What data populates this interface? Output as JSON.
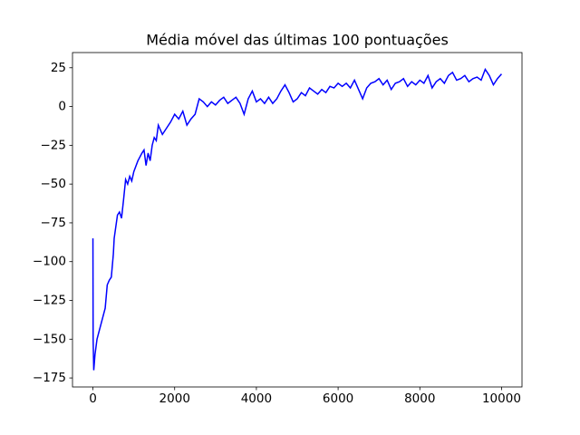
{
  "chart_data": {
    "type": "line",
    "title": "Média móvel das últimas 100 pontuações",
    "x": [
      0,
      5,
      20,
      50,
      100,
      150,
      200,
      300,
      350,
      400,
      450,
      500,
      520,
      600,
      650,
      700,
      750,
      800,
      850,
      900,
      950,
      1000,
      1100,
      1200,
      1250,
      1300,
      1350,
      1400,
      1450,
      1500,
      1550,
      1600,
      1700,
      1800,
      1900,
      2000,
      2100,
      2200,
      2300,
      2400,
      2500,
      2600,
      2700,
      2800,
      2900,
      3000,
      3100,
      3200,
      3300,
      3400,
      3500,
      3600,
      3700,
      3800,
      3900,
      4000,
      4100,
      4200,
      4300,
      4400,
      4500,
      4600,
      4700,
      4800,
      4900,
      5000,
      5100,
      5200,
      5300,
      5400,
      5500,
      5600,
      5700,
      5800,
      5900,
      6000,
      6100,
      6200,
      6300,
      6400,
      6500,
      6600,
      6700,
      6800,
      6900,
      7000,
      7100,
      7200,
      7300,
      7400,
      7500,
      7600,
      7700,
      7800,
      7900,
      8000,
      8100,
      8200,
      8300,
      8400,
      8500,
      8600,
      8700,
      8800,
      8900,
      9000,
      9100,
      9200,
      9300,
      9400,
      9500,
      9600,
      9700,
      9800,
      9900,
      10000
    ],
    "series": [
      {
        "color": "#0000ff",
        "values": [
          -85,
          -150,
          -170,
          -160,
          -150,
          -145,
          -140,
          -130,
          -115,
          -112,
          -110,
          -95,
          -85,
          -70,
          -68,
          -72,
          -60,
          -47,
          -50,
          -45,
          -48,
          -42,
          -35,
          -30,
          -28,
          -38,
          -30,
          -35,
          -25,
          -20,
          -22,
          -12,
          -18,
          -14,
          -10,
          -5,
          -8,
          -3,
          -12,
          -8,
          -5,
          5,
          3,
          0,
          3,
          1,
          4,
          6,
          2,
          4,
          6,
          2,
          -5,
          5,
          10,
          3,
          5,
          2,
          6,
          2,
          5,
          10,
          14,
          9,
          3,
          5,
          9,
          7,
          12,
          10,
          8,
          11,
          9,
          13,
          12,
          15,
          13,
          15,
          12,
          17,
          11,
          5,
          12,
          15,
          16,
          18,
          14,
          17,
          11,
          15,
          16,
          18,
          13,
          16,
          14,
          17,
          15,
          20,
          12,
          16,
          18,
          15,
          20,
          22,
          17,
          18,
          20,
          16,
          18,
          19,
          17,
          24,
          20,
          14,
          18,
          21
        ]
      }
    ],
    "xlim": [
      -500,
      10500
    ],
    "ylim": [
      -180.8,
      34.8
    ],
    "xticks": [
      0,
      2000,
      4000,
      6000,
      8000,
      10000
    ],
    "yticks": [
      {
        "value": -175,
        "label": "−175"
      },
      {
        "value": -150,
        "label": "−150"
      },
      {
        "value": -125,
        "label": "−125"
      },
      {
        "value": -100,
        "label": "−100"
      },
      {
        "value": -75,
        "label": "−75"
      },
      {
        "value": -50,
        "label": "−50"
      },
      {
        "value": -25,
        "label": "−25"
      },
      0,
      25
    ]
  }
}
